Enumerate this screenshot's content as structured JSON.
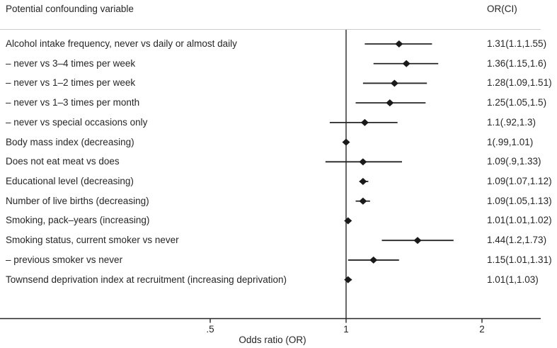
{
  "header": {
    "left": "Potential confounding variable",
    "right": "OR(CI)"
  },
  "chart_data": {
    "type": "scatter",
    "subtype": "forest-plot",
    "title": "",
    "xlabel": "Odds ratio (OR)",
    "ylabel": "",
    "x_scale": "log",
    "xlim": [
      0.17,
      2.7
    ],
    "reference_line_x": 1,
    "grid": false,
    "x_ticks": [
      {
        "value": 0.5,
        "label": ".5"
      },
      {
        "value": 1,
        "label": "1"
      },
      {
        "value": 2,
        "label": "2"
      }
    ],
    "rows": [
      {
        "label": "Alcohol intake frequency, never vs daily or almost daily",
        "or": 1.31,
        "ci_low": 1.1,
        "ci_high": 1.55,
        "or_ci_text": "1.31(1.1,1.55)"
      },
      {
        "label": "– never vs 3–4 times per week",
        "or": 1.36,
        "ci_low": 1.15,
        "ci_high": 1.6,
        "or_ci_text": "1.36(1.15,1.6)"
      },
      {
        "label": "– never vs 1–2 times per week",
        "or": 1.28,
        "ci_low": 1.09,
        "ci_high": 1.51,
        "or_ci_text": "1.28(1.09,1.51)"
      },
      {
        "label": "– never vs 1–3 times per month",
        "or": 1.25,
        "ci_low": 1.05,
        "ci_high": 1.5,
        "or_ci_text": "1.25(1.05,1.5)"
      },
      {
        "label": "– never vs special occasions only",
        "or": 1.1,
        "ci_low": 0.92,
        "ci_high": 1.3,
        "or_ci_text": "1.1(.92,1.3)"
      },
      {
        "label": "Body mass index (decreasing)",
        "or": 1.0,
        "ci_low": 0.99,
        "ci_high": 1.01,
        "or_ci_text": "1(.99,1.01)"
      },
      {
        "label": "Does not eat meat vs does",
        "or": 1.09,
        "ci_low": 0.9,
        "ci_high": 1.33,
        "or_ci_text": "1.09(.9,1.33)"
      },
      {
        "label": "Educational level (decreasing)",
        "or": 1.09,
        "ci_low": 1.07,
        "ci_high": 1.12,
        "or_ci_text": "1.09(1.07,1.12)"
      },
      {
        "label": "Number of live births (decreasing)",
        "or": 1.09,
        "ci_low": 1.05,
        "ci_high": 1.13,
        "or_ci_text": "1.09(1.05,1.13)"
      },
      {
        "label": "Smoking, pack–years (increasing)",
        "or": 1.01,
        "ci_low": 1.01,
        "ci_high": 1.02,
        "or_ci_text": "1.01(1.01,1.02)"
      },
      {
        "label": "Smoking status, current smoker vs never",
        "or": 1.44,
        "ci_low": 1.2,
        "ci_high": 1.73,
        "or_ci_text": "1.44(1.2,1.73)"
      },
      {
        "label": "– previous smoker vs never",
        "or": 1.15,
        "ci_low": 1.01,
        "ci_high": 1.31,
        "or_ci_text": "1.15(1.01,1.31)"
      },
      {
        "label": "Townsend deprivation index at recruitment (increasing deprivation)",
        "or": 1.01,
        "ci_low": 1.0,
        "ci_high": 1.03,
        "or_ci_text": "1.01(1,1.03)"
      }
    ]
  },
  "colors": {
    "text": "#262626",
    "marker": "#1a1a1a",
    "line": "#262626",
    "separator": "#cccccc",
    "background": "#ffffff"
  }
}
